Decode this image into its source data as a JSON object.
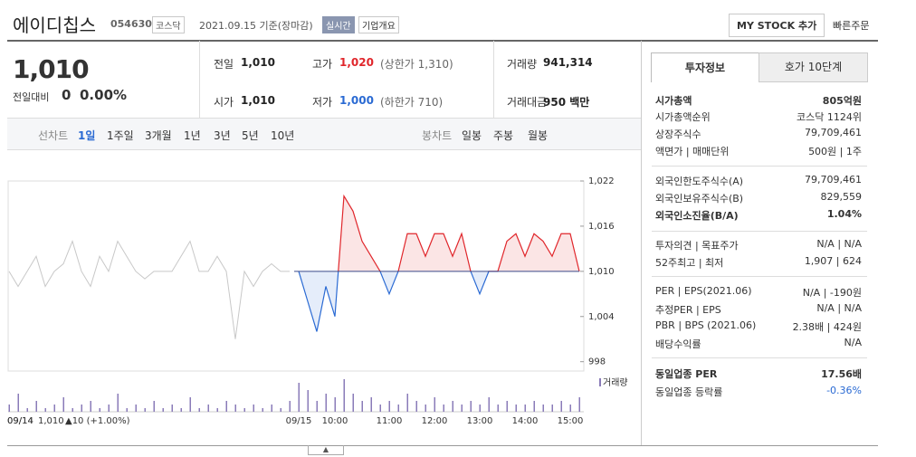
{
  "header": {
    "name": "에이디칩스",
    "code": "054630",
    "market": "코스닥",
    "date": "2021.09.15 기준(장마감)",
    "realtime": "실시간",
    "company": "기업개요",
    "mystock": "MY STOCK 추가",
    "quick_order": "빠른주문"
  },
  "price": {
    "current": "1,010",
    "change_label": "전일대비",
    "change": "0",
    "change_rate": "0.00%"
  },
  "summary": [
    [
      {
        "label": "전일",
        "value": "1,010"
      },
      {
        "label": "고가",
        "value": "1,020",
        "note": "(상한가 1,310)"
      },
      {
        "label": "거래량",
        "value": "941,314"
      }
    ],
    [
      {
        "label": "시가",
        "value": "1,010"
      },
      {
        "label": "저가",
        "value": "1,000",
        "note": "(하한가 710)"
      },
      {
        "label": "거래대금",
        "value": "950 백만"
      }
    ]
  ],
  "tabs": {
    "line_label": "선차트",
    "line": [
      "1일",
      "1주일",
      "3개월",
      "1년",
      "3년",
      "5년",
      "10년"
    ],
    "candle_label": "봉차트",
    "candle": [
      "일봉",
      "주봉",
      "월봉"
    ]
  },
  "chart_data": {
    "type": "line",
    "categories": [
      "09/14",
      null,
      null,
      null,
      null,
      null,
      null,
      null,
      null,
      null,
      null,
      null,
      null,
      null,
      null,
      null,
      null,
      null,
      null,
      null,
      null,
      null,
      null,
      null,
      null,
      null,
      null,
      null,
      null,
      null,
      null,
      null,
      "09/15",
      null,
      null,
      null,
      "10:00",
      null,
      null,
      null,
      null,
      null,
      "11:00",
      null,
      null,
      null,
      null,
      "12:00",
      null,
      null,
      null,
      null,
      "13:00",
      null,
      null,
      null,
      null,
      "14:00",
      null,
      null,
      null,
      null,
      "15:00",
      null
    ],
    "ylim": [
      997,
      1022
    ],
    "yticks": [
      {
        "value": 1022,
        "label": "1,022"
      },
      {
        "value": 1016,
        "label": "1,016"
      },
      {
        "value": 1010,
        "label": "1,010"
      },
      {
        "value": 1004,
        "label": "1,004"
      },
      998
    ],
    "baseline": 1010,
    "grid": false,
    "series": [
      {
        "color": "#c8c8c8",
        "values": [
          1010,
          1008,
          1010,
          1012,
          1008,
          1010,
          1011,
          1014,
          1010,
          1008,
          1012,
          1010,
          1014,
          1012,
          1010,
          1009,
          1010,
          1010,
          1010,
          1012,
          1014,
          1010,
          1010,
          1012,
          1010,
          1001,
          1010,
          1008,
          1010,
          1011,
          1010,
          1010,
          null,
          null,
          null,
          null,
          null,
          null,
          null,
          null,
          null,
          null,
          null,
          null,
          null,
          null,
          null,
          null,
          null,
          null,
          null,
          null,
          null,
          null,
          null,
          null,
          null,
          null,
          null,
          null,
          null,
          null,
          null,
          null
        ]
      },
      {
        "up_color": "#e0262b",
        "down_color": "#2a6ad3",
        "values": [
          null,
          null,
          null,
          null,
          null,
          null,
          null,
          null,
          null,
          null,
          null,
          null,
          null,
          null,
          null,
          null,
          null,
          null,
          null,
          null,
          null,
          null,
          null,
          null,
          null,
          null,
          null,
          null,
          null,
          null,
          null,
          null,
          1010,
          1006,
          1002,
          1008,
          1004,
          1020,
          1018,
          1014,
          1012,
          1010,
          1007,
          1010,
          1015,
          1015,
          1012,
          1015,
          1015,
          1012,
          1015,
          1010,
          1007,
          1010,
          1010,
          1014,
          1015,
          1012,
          1015,
          1014,
          1012,
          1015,
          1015,
          1010
        ]
      },
      {
        "name": "거래량",
        "axis": "y2",
        "color": "#8a7bb8",
        "values": [
          2,
          5,
          1,
          3,
          1,
          2,
          4,
          1,
          2,
          3,
          1,
          2,
          5,
          1,
          2,
          1,
          3,
          1,
          2,
          1,
          4,
          1,
          2,
          1,
          3,
          2,
          1,
          2,
          1,
          2,
          1,
          3,
          8,
          6,
          3,
          5,
          4,
          9,
          5,
          3,
          4,
          2,
          3,
          2,
          5,
          3,
          2,
          4,
          2,
          3,
          2,
          3,
          2,
          4,
          2,
          3,
          2,
          2,
          3,
          2,
          2,
          3,
          2,
          4
        ]
      }
    ],
    "y2lim": [
      0,
      10
    ],
    "hover": {
      "date": "09/14",
      "price": "1,010",
      "change": "▲10 (+1.00%)"
    }
  },
  "info": {
    "tabs": [
      "투자정보",
      "호가 10단계"
    ],
    "groups": [
      [
        {
          "label": "시가총액",
          "value": "805억원"
        },
        {
          "label": "시가총액순위",
          "value": "코스닥 1124위"
        },
        {
          "label": "상장주식수",
          "value": "79,709,461"
        },
        {
          "label": "액면가 | 매매단위",
          "value": "500원 | 1주"
        }
      ],
      [
        {
          "label": "외국인한도주식수(A)",
          "value": "79,709,461"
        },
        {
          "label": "외국인보유주식수(B)",
          "value": "829,559"
        },
        {
          "label": "외국인소진율(B/A)",
          "value": "1.04%"
        }
      ],
      [
        {
          "label": "투자의견 | 목표주가",
          "value": "N/A | N/A"
        },
        {
          "label": "52주최고 | 최저",
          "value": "1,907 | 624"
        }
      ],
      [
        {
          "label": "PER | EPS(2021.06)",
          "value": "N/A | -190원"
        },
        {
          "label": "추정PER | EPS",
          "value": "N/A | N/A"
        },
        {
          "label": "PBR | BPS (2021.06)",
          "value": "2.38배 | 424원"
        },
        {
          "label": "배당수익률",
          "value": "N/A"
        }
      ],
      [
        {
          "label": "동일업종 PER",
          "value": "17.56배"
        },
        {
          "label": "동일업종 등락률",
          "value": "-0.36%"
        }
      ]
    ]
  }
}
